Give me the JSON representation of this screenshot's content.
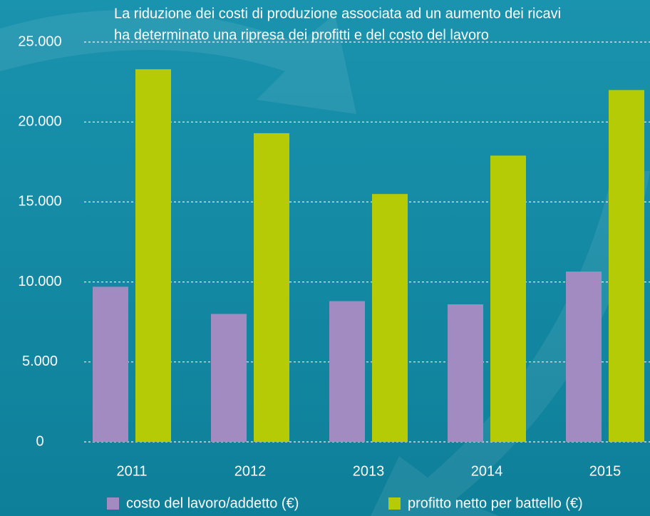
{
  "chart_data": {
    "type": "bar",
    "title": [
      "La riduzione dei costi di produzione associata ad un aumento dei ricavi",
      "ha determinato una ripresa dei profitti e del costo del lavoro"
    ],
    "categories": [
      "2011",
      "2012",
      "2013",
      "2014",
      "2015"
    ],
    "series": [
      {
        "name": "costo del lavoro/addetto (€)",
        "color": "#a18bc0",
        "values": [
          9700,
          8000,
          8800,
          8600,
          10650
        ]
      },
      {
        "name": "profitto netto per battello (€)",
        "color": "#b5cb05",
        "values": [
          23300,
          19300,
          15500,
          17900,
          22000
        ]
      }
    ],
    "ylim": [
      0,
      25000
    ],
    "yticks": [
      0,
      {
        "value": 5000,
        "label": "5.000"
      },
      {
        "value": 10000,
        "label": "10.000"
      },
      {
        "value": 15000,
        "label": "15.000"
      },
      {
        "value": 20000,
        "label": "20.000"
      },
      {
        "value": 25000,
        "label": "25.000"
      }
    ],
    "grid": true
  }
}
